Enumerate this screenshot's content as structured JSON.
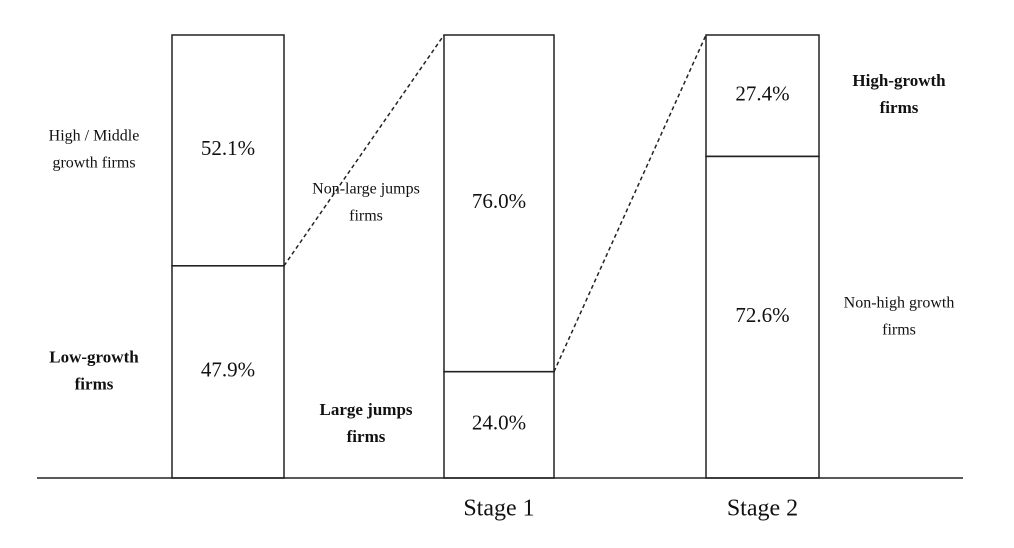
{
  "chart_data": {
    "type": "stacked-flow",
    "categories": [
      null,
      "Stage 1",
      "Stage 2"
    ],
    "bars": [
      {
        "label_side": "left",
        "segments": [
          {
            "label": [
              "Low-growth",
              "firms"
            ],
            "bold": true,
            "value": 47.9,
            "value_label": "47.9%"
          },
          {
            "label": [
              "High / Middle",
              "growth firms"
            ],
            "bold": false,
            "value": 52.1,
            "value_label": "52.1%"
          }
        ]
      },
      {
        "label_side": "left",
        "segments": [
          {
            "label": [
              "Large jumps",
              "firms"
            ],
            "bold": true,
            "value": 24.0,
            "value_label": "24.0%"
          },
          {
            "label": [
              "Non-large jumps",
              "firms"
            ],
            "bold": false,
            "value": 76.0,
            "value_label": "76.0%"
          }
        ]
      },
      {
        "label_side": "right",
        "segments": [
          {
            "label": [
              "Non-high growth",
              "firms"
            ],
            "bold": false,
            "value": 72.6,
            "value_label": "72.6%"
          },
          {
            "label": [
              "High-growth",
              "firms"
            ],
            "bold": true,
            "value": 27.4,
            "value_label": "27.4%"
          }
        ]
      }
    ]
  }
}
